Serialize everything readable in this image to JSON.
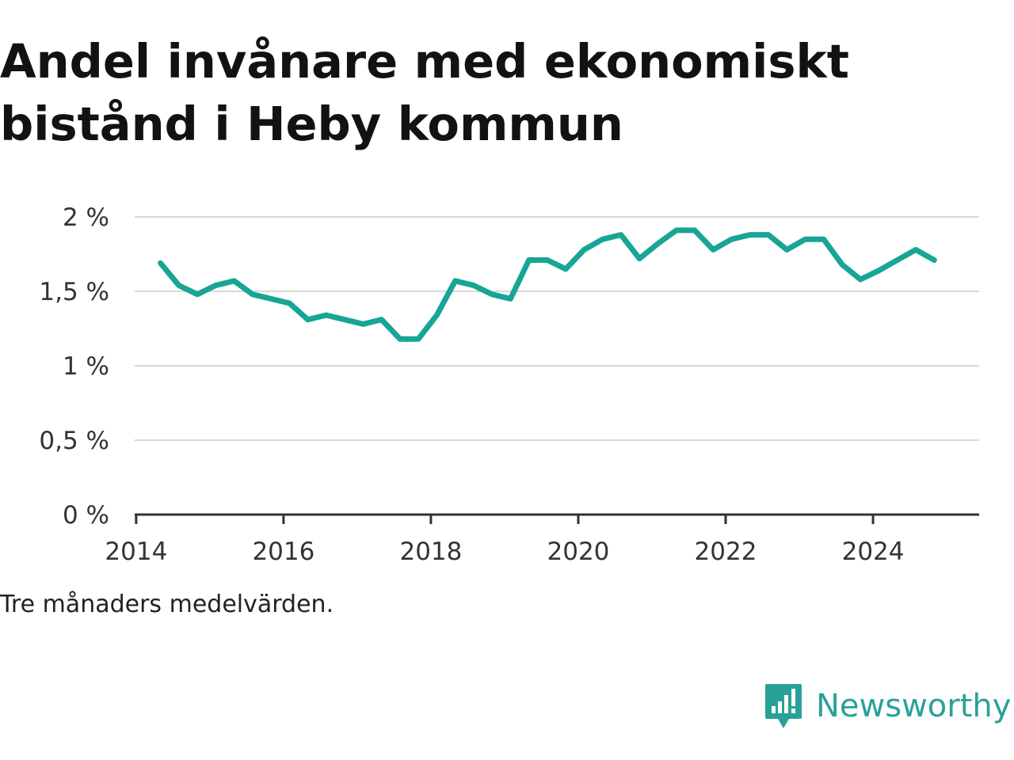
{
  "title": "Andel invånare med ekonomiskt bistånd i Heby kommun",
  "note": "Tre månaders medelvärden.",
  "brand": {
    "name": "Newsworthy",
    "icon": "newsworthy-logo-icon",
    "color": "#2aa198"
  },
  "chart_data": {
    "type": "line",
    "title": "Andel invånare med ekonomiskt bistånd i Heby kommun",
    "xlabel": "",
    "ylabel": "",
    "xlim": [
      2013.98,
      2025.44
    ],
    "ylim": [
      0,
      2
    ],
    "x_ticks": [
      {
        "value": 2014,
        "label": "2014"
      },
      {
        "value": 2016,
        "label": "2016"
      },
      {
        "value": 2018,
        "label": "2018"
      },
      {
        "value": 2020,
        "label": "2020"
      },
      {
        "value": 2022,
        "label": "2022"
      },
      {
        "value": 2024,
        "label": "2024"
      }
    ],
    "y_ticks": [
      {
        "value": 0,
        "label": "0 %"
      },
      {
        "value": 0.5,
        "label": "0,5 %"
      },
      {
        "value": 1,
        "label": "1 %"
      },
      {
        "value": 1.5,
        "label": "1,5 %"
      },
      {
        "value": 2,
        "label": "2 %"
      }
    ],
    "grid": true,
    "line_color": "#18a596",
    "series": [
      {
        "x": [
          2014.33,
          2014.58,
          2014.83,
          2015.08,
          2015.33,
          2015.58,
          2015.83,
          2016.08,
          2016.33,
          2016.58,
          2016.83,
          2017.08,
          2017.33,
          2017.58,
          2017.83,
          2018.08,
          2018.33,
          2018.58,
          2018.83,
          2019.08,
          2019.33,
          2019.58,
          2019.83,
          2020.08,
          2020.33,
          2020.58,
          2020.83,
          2021.08,
          2021.33,
          2021.58,
          2021.83,
          2022.08,
          2022.33,
          2022.58,
          2022.83,
          2023.08,
          2023.33,
          2023.58,
          2023.83,
          2024.08,
          2024.33,
          2024.58,
          2024.83
        ],
        "values": [
          1.69,
          1.54,
          1.48,
          1.54,
          1.57,
          1.48,
          1.45,
          1.42,
          1.31,
          1.34,
          1.31,
          1.28,
          1.31,
          1.18,
          1.18,
          1.34,
          1.57,
          1.54,
          1.48,
          1.45,
          1.71,
          1.71,
          1.65,
          1.78,
          1.85,
          1.88,
          1.72,
          1.82,
          1.91,
          1.91,
          1.78,
          1.85,
          1.88,
          1.88,
          1.78,
          1.85,
          1.85,
          1.68,
          1.58,
          1.64,
          1.71,
          1.78,
          1.71
        ]
      }
    ]
  }
}
